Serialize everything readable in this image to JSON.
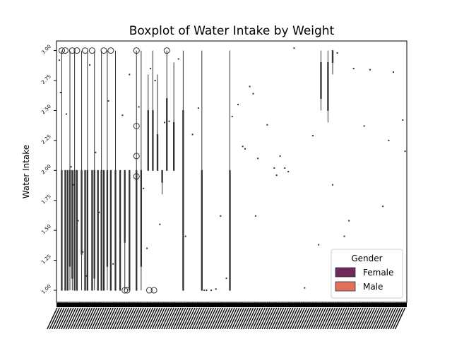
{
  "chart_data": {
    "type": "box",
    "title": "Boxplot of Water Intake by Weight",
    "xlabel": "",
    "ylabel": "Water Intake",
    "ylim": [
      0.9,
      3.08
    ],
    "yticks": [
      1.0,
      1.25,
      1.5,
      1.75,
      2.0,
      2.25,
      2.5,
      2.75,
      3.0
    ],
    "ytick_labels": [
      "1.00",
      "1.25",
      "1.50",
      "1.75",
      "2.00",
      "2.25",
      "2.50",
      "2.75",
      "3.00"
    ],
    "x_tick_count": 300,
    "legend": {
      "title": "Gender",
      "placement": "lower-right",
      "entries": [
        {
          "name": "Female",
          "color": "#6e2a5b"
        },
        {
          "name": "Male",
          "color": "#e0705a"
        }
      ]
    },
    "groups": [
      {
        "i": 4,
        "low": 1.0,
        "q1": 1.0,
        "q3": 2.0,
        "high": 3.0
      },
      {
        "i": 7,
        "low": 1.0,
        "q1": 1.0,
        "q3": 2.0,
        "high": 2.0,
        "outliers": [
          3.0
        ]
      },
      {
        "i": 9,
        "low": 1.0,
        "q1": 1.0,
        "q3": 2.0,
        "high": 2.0
      },
      {
        "i": 11,
        "low": 1.0,
        "q1": 1.2,
        "q3": 2.0,
        "high": 3.0
      },
      {
        "i": 13,
        "low": 1.0,
        "q1": 1.1,
        "q3": 2.0,
        "high": 2.0,
        "outliers": [
          3.0
        ]
      },
      {
        "i": 15,
        "low": 1.0,
        "q1": 1.0,
        "q3": 2.0,
        "high": 3.0
      },
      {
        "i": 17,
        "low": 1.0,
        "q1": 1.0,
        "q3": 2.0,
        "high": 2.0,
        "outliers": [
          3.0
        ]
      },
      {
        "i": 21,
        "low": 1.0,
        "q1": 1.3,
        "q3": 2.0,
        "high": 3.0
      },
      {
        "i": 24,
        "low": 1.0,
        "q1": 1.0,
        "q3": 2.0,
        "high": 2.0,
        "outliers": [
          3.0
        ]
      },
      {
        "i": 26,
        "low": 1.0,
        "q1": 1.0,
        "q3": 2.0,
        "high": 3.0
      },
      {
        "i": 30,
        "low": 1.0,
        "q1": 1.0,
        "q3": 2.0,
        "high": 2.0,
        "outliers": [
          3.0
        ]
      },
      {
        "i": 32,
        "low": 1.0,
        "q1": 1.1,
        "q3": 2.0,
        "high": 3.0
      },
      {
        "i": 35,
        "low": 1.0,
        "q1": 1.0,
        "q3": 2.0,
        "high": 2.0
      },
      {
        "i": 38,
        "low": 1.0,
        "q1": 1.0,
        "q3": 2.0,
        "high": 3.0
      },
      {
        "i": 40,
        "low": 1.0,
        "q1": 1.0,
        "q3": 2.0,
        "high": 2.0,
        "outliers": [
          3.0
        ]
      },
      {
        "i": 43,
        "low": 1.0,
        "q1": 1.2,
        "q3": 2.0,
        "high": 3.0
      },
      {
        "i": 46,
        "low": 1.0,
        "q1": 1.0,
        "q3": 2.0,
        "high": 2.0,
        "outliers": [
          3.0
        ]
      },
      {
        "i": 50,
        "low": 1.0,
        "q1": 1.0,
        "q3": 2.0,
        "high": 3.0
      },
      {
        "i": 54,
        "low": 1.0,
        "q1": 1.0,
        "q3": 2.0,
        "high": 2.0
      },
      {
        "i": 58,
        "low": 1.0,
        "q1": 1.4,
        "q3": 2.0,
        "high": 2.0
      },
      {
        "i": 62,
        "low": 1.0,
        "q1": 1.0,
        "q3": 2.0,
        "high": 2.0
      },
      {
        "i": 68,
        "low": 1.0,
        "q1": 1.0,
        "q3": 2.0,
        "high": 3.0,
        "outliers": [
          1.95,
          2.12,
          2.37,
          3.0
        ]
      },
      {
        "i": 72,
        "low": 1.0,
        "q1": 1.2,
        "q3": 2.0,
        "high": 3.0
      },
      {
        "i": 78,
        "low": 2.0,
        "q1": 2.0,
        "q3": 2.5,
        "high": 2.8
      },
      {
        "i": 82,
        "low": 2.0,
        "q1": 2.0,
        "q3": 2.5,
        "high": 3.0
      },
      {
        "i": 86,
        "low": 2.0,
        "q1": 2.0,
        "q3": 2.3,
        "high": 2.8
      },
      {
        "i": 90,
        "low": 1.8,
        "q1": 1.9,
        "q3": 2.0,
        "high": 2.0
      },
      {
        "i": 94,
        "low": 2.0,
        "q1": 2.0,
        "q3": 2.6,
        "high": 3.0
      },
      {
        "i": 100,
        "low": 2.0,
        "q1": 2.0,
        "q3": 2.4,
        "high": 2.9
      },
      {
        "i": 108,
        "low": 1.0,
        "q1": 1.0,
        "q3": 2.5,
        "high": 3.0
      },
      {
        "i": 124,
        "low": 1.0,
        "q1": 1.0,
        "q3": 2.0,
        "high": 3.0
      },
      {
        "i": 148,
        "low": 1.0,
        "q1": 1.0,
        "q3": 2.0,
        "high": 3.0
      },
      {
        "i": 226,
        "low": 2.5,
        "q1": 2.6,
        "q3": 2.9,
        "high": 3.0
      },
      {
        "i": 232,
        "low": 2.4,
        "q1": 2.5,
        "q3": 2.9,
        "high": 3.0
      },
      {
        "i": 236,
        "low": 2.8,
        "q1": 2.9,
        "q3": 3.0,
        "high": 3.0
      }
    ],
    "outliers_extra": [
      {
        "i": 58,
        "y": 1.0
      },
      {
        "i": 60,
        "y": 1.0
      },
      {
        "i": 79,
        "y": 1.0
      },
      {
        "i": 83,
        "y": 1.0
      },
      {
        "i": 94,
        "y": 3.0
      },
      {
        "i": 4,
        "y": 3.0
      }
    ],
    "scatter": [
      {
        "i": 2,
        "y": 2.92
      },
      {
        "i": 3,
        "y": 2.65
      },
      {
        "i": 8,
        "y": 2.47
      },
      {
        "i": 12,
        "y": 2.03
      },
      {
        "i": 14,
        "y": 1.88
      },
      {
        "i": 18,
        "y": 1.58
      },
      {
        "i": 22,
        "y": 1.32
      },
      {
        "i": 25,
        "y": 1.12
      },
      {
        "i": 28,
        "y": 2.88
      },
      {
        "i": 33,
        "y": 2.15
      },
      {
        "i": 36,
        "y": 1.65
      },
      {
        "i": 44,
        "y": 2.58
      },
      {
        "i": 48,
        "y": 1.22
      },
      {
        "i": 56,
        "y": 2.46
      },
      {
        "i": 62,
        "y": 2.8
      },
      {
        "i": 70,
        "y": 2.53
      },
      {
        "i": 74,
        "y": 1.85
      },
      {
        "i": 77,
        "y": 1.35
      },
      {
        "i": 80,
        "y": 2.85
      },
      {
        "i": 84,
        "y": 2.75
      },
      {
        "i": 88,
        "y": 1.55
      },
      {
        "i": 92,
        "y": 2.4
      },
      {
        "i": 96,
        "y": 2.41
      },
      {
        "i": 104,
        "y": 2.93
      },
      {
        "i": 110,
        "y": 1.45
      },
      {
        "i": 116,
        "y": 2.3
      },
      {
        "i": 121,
        "y": 2.52
      },
      {
        "i": 126,
        "y": 1.0
      },
      {
        "i": 128,
        "y": 1.0
      },
      {
        "i": 132,
        "y": 1.0
      },
      {
        "i": 136,
        "y": 1.01
      },
      {
        "i": 140,
        "y": 1.62
      },
      {
        "i": 145,
        "y": 1.1
      },
      {
        "i": 150,
        "y": 2.45
      },
      {
        "i": 155,
        "y": 2.55
      },
      {
        "i": 159,
        "y": 2.2
      },
      {
        "i": 161,
        "y": 2.18
      },
      {
        "i": 165,
        "y": 2.7
      },
      {
        "i": 168,
        "y": 2.64
      },
      {
        "i": 170,
        "y": 1.62
      },
      {
        "i": 172,
        "y": 2.1
      },
      {
        "i": 180,
        "y": 2.38
      },
      {
        "i": 186,
        "y": 2.02
      },
      {
        "i": 188,
        "y": 1.96
      },
      {
        "i": 191,
        "y": 2.12
      },
      {
        "i": 195,
        "y": 2.02
      },
      {
        "i": 198,
        "y": 1.99
      },
      {
        "i": 203,
        "y": 3.02
      },
      {
        "i": 212,
        "y": 1.02
      },
      {
        "i": 219,
        "y": 2.29
      },
      {
        "i": 224,
        "y": 1.38
      },
      {
        "i": 236,
        "y": 1.88
      },
      {
        "i": 240,
        "y": 2.98
      },
      {
        "i": 246,
        "y": 1.45
      },
      {
        "i": 250,
        "y": 1.58
      },
      {
        "i": 254,
        "y": 2.85
      },
      {
        "i": 258,
        "y": 1.05
      },
      {
        "i": 263,
        "y": 2.37
      },
      {
        "i": 268,
        "y": 2.84
      },
      {
        "i": 279,
        "y": 1.7
      },
      {
        "i": 284,
        "y": 2.25
      },
      {
        "i": 288,
        "y": 2.82
      },
      {
        "i": 296,
        "y": 2.42
      },
      {
        "i": 298,
        "y": 2.16
      }
    ]
  }
}
